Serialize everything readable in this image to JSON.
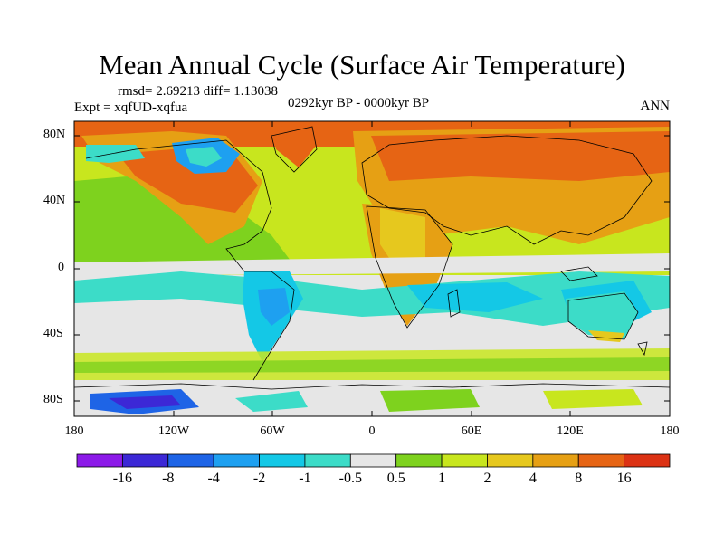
{
  "figure": {
    "title": "Mean Annual Cycle (Surface Air Temperature)",
    "stats": "rmsd= 2.69213 diff= 1.13038",
    "experiment": "Expt = xqfUD-xqfua",
    "period": "0292kyr BP - 0000kyr BP",
    "season": "ANN"
  },
  "map": {
    "lat_ticks": [
      "80N",
      "40N",
      "0",
      "40S",
      "80S"
    ],
    "lon_ticks": [
      "180",
      "120W",
      "60W",
      "0",
      "60E",
      "120E",
      "180"
    ]
  },
  "colorbar": {
    "colors": [
      "#8c1ae8",
      "#3c28d6",
      "#1e64e6",
      "#1ea0f0",
      "#14c8e6",
      "#3cdcc8",
      "#e6e6e6",
      "#7ed21e",
      "#c8e61e",
      "#e6c81e",
      "#e6a014",
      "#e66414",
      "#dc3214"
    ],
    "labels": [
      "-16",
      "-8",
      "-4",
      "-2",
      "-1",
      "-0.5",
      "0.5",
      "1",
      "2",
      "4",
      "8",
      "16"
    ]
  }
}
